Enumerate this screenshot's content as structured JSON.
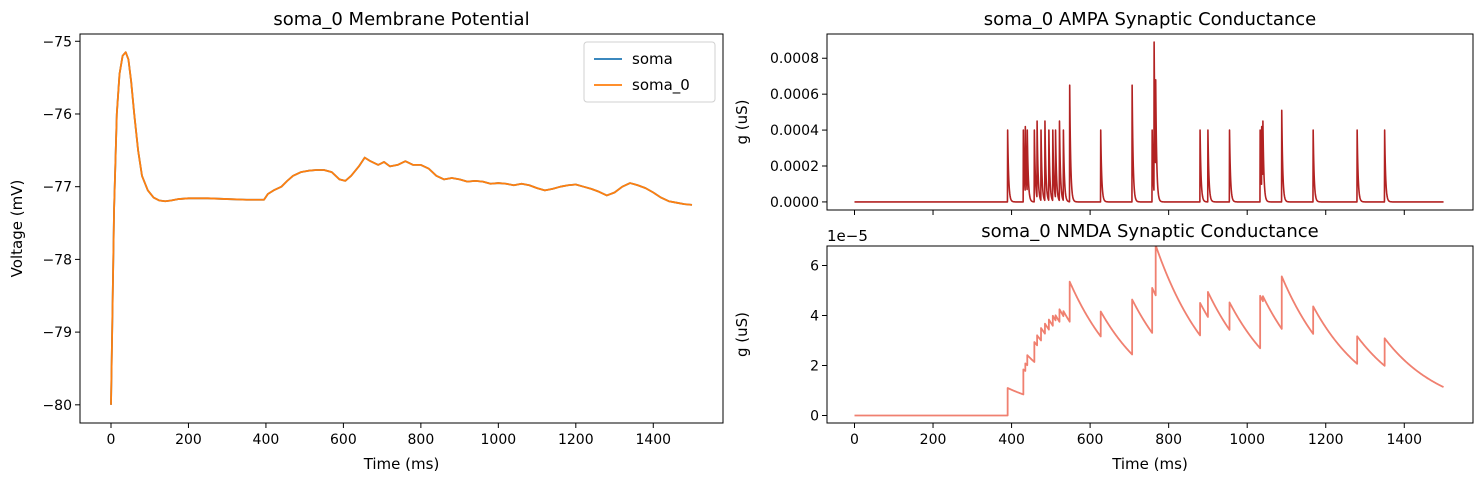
{
  "chart_data": [
    {
      "type": "line",
      "title": "soma_0 Membrane Potential",
      "xlabel": "Time (ms)",
      "ylabel": "Voltage (mV)",
      "xlim": [
        -80,
        1580
      ],
      "ylim": [
        -80.25,
        -74.9
      ],
      "xticks": [
        0,
        200,
        400,
        600,
        800,
        1000,
        1200,
        1400
      ],
      "xtick_labels": [
        "0",
        "200",
        "400",
        "600",
        "800",
        "1000",
        "1200",
        "1400"
      ],
      "yticks": [
        -80,
        -79,
        -78,
        -77,
        -76,
        -75
      ],
      "ytick_labels": [
        "−80",
        "−79",
        "−78",
        "−77",
        "−76",
        "−75"
      ],
      "grid": false,
      "legend_position": "top-right",
      "colors": {
        "soma": "#1f77b4",
        "soma_0": "#ff7f0e"
      },
      "series": [
        {
          "name": "soma",
          "x": [
            0,
            3,
            8,
            15,
            22,
            30,
            38,
            45,
            52,
            60,
            70,
            80,
            95,
            110,
            125,
            140,
            155,
            175,
            200,
            250,
            300,
            350,
            395,
            405,
            420,
            440,
            455,
            470,
            490,
            510,
            530,
            550,
            570,
            590,
            605,
            620,
            640,
            655,
            670,
            690,
            705,
            720,
            740,
            760,
            780,
            800,
            820,
            840,
            860,
            880,
            900,
            920,
            940,
            960,
            980,
            1000,
            1020,
            1040,
            1060,
            1080,
            1100,
            1120,
            1140,
            1160,
            1180,
            1200,
            1220,
            1240,
            1260,
            1280,
            1300,
            1320,
            1340,
            1360,
            1380,
            1400,
            1420,
            1440,
            1460,
            1480,
            1500
          ],
          "values": [
            -80.0,
            -79.0,
            -77.3,
            -76.0,
            -75.45,
            -75.2,
            -75.15,
            -75.25,
            -75.55,
            -76.0,
            -76.5,
            -76.85,
            -77.05,
            -77.15,
            -77.19,
            -77.2,
            -77.19,
            -77.17,
            -77.16,
            -77.16,
            -77.17,
            -77.18,
            -77.18,
            -77.1,
            -77.05,
            -77.0,
            -76.92,
            -76.85,
            -76.8,
            -76.78,
            -76.77,
            -76.77,
            -76.8,
            -76.9,
            -76.92,
            -76.85,
            -76.72,
            -76.6,
            -76.65,
            -76.7,
            -76.66,
            -76.72,
            -76.7,
            -76.65,
            -76.7,
            -76.7,
            -76.75,
            -76.85,
            -76.9,
            -76.88,
            -76.9,
            -76.93,
            -76.92,
            -76.93,
            -76.96,
            -76.95,
            -76.96,
            -76.98,
            -76.96,
            -76.98,
            -77.02,
            -77.05,
            -77.03,
            -77.0,
            -76.98,
            -76.97,
            -77.0,
            -77.03,
            -77.07,
            -77.12,
            -77.08,
            -77.0,
            -76.95,
            -76.98,
            -77.02,
            -77.08,
            -77.15,
            -77.2,
            -77.22,
            -77.24,
            -77.25
          ]
        },
        {
          "name": "soma_0",
          "x": [
            0,
            3,
            8,
            15,
            22,
            30,
            38,
            45,
            52,
            60,
            70,
            80,
            95,
            110,
            125,
            140,
            155,
            175,
            200,
            250,
            300,
            350,
            395,
            405,
            420,
            440,
            455,
            470,
            490,
            510,
            530,
            550,
            570,
            590,
            605,
            620,
            640,
            655,
            670,
            690,
            705,
            720,
            740,
            760,
            780,
            800,
            820,
            840,
            860,
            880,
            900,
            920,
            940,
            960,
            980,
            1000,
            1020,
            1040,
            1060,
            1080,
            1100,
            1120,
            1140,
            1160,
            1180,
            1200,
            1220,
            1240,
            1260,
            1280,
            1300,
            1320,
            1340,
            1360,
            1380,
            1400,
            1420,
            1440,
            1460,
            1480,
            1500
          ],
          "values": [
            -80.0,
            -79.0,
            -77.3,
            -76.0,
            -75.45,
            -75.2,
            -75.15,
            -75.25,
            -75.55,
            -76.0,
            -76.5,
            -76.85,
            -77.05,
            -77.15,
            -77.19,
            -77.2,
            -77.19,
            -77.17,
            -77.16,
            -77.16,
            -77.17,
            -77.18,
            -77.18,
            -77.1,
            -77.05,
            -77.0,
            -76.92,
            -76.85,
            -76.8,
            -76.78,
            -76.77,
            -76.77,
            -76.8,
            -76.9,
            -76.92,
            -76.85,
            -76.72,
            -76.6,
            -76.65,
            -76.7,
            -76.66,
            -76.72,
            -76.7,
            -76.65,
            -76.7,
            -76.7,
            -76.75,
            -76.85,
            -76.9,
            -76.88,
            -76.9,
            -76.93,
            -76.92,
            -76.93,
            -76.96,
            -76.95,
            -76.96,
            -76.98,
            -76.96,
            -76.98,
            -77.02,
            -77.05,
            -77.03,
            -77.0,
            -76.98,
            -76.97,
            -77.0,
            -77.03,
            -77.07,
            -77.12,
            -77.08,
            -77.0,
            -76.95,
            -76.98,
            -77.02,
            -77.08,
            -77.15,
            -77.2,
            -77.22,
            -77.24,
            -77.25
          ]
        }
      ]
    },
    {
      "type": "line",
      "title": "soma_0 AMPA Synaptic Conductance",
      "xlabel": "",
      "ylabel": "g (uS)",
      "xlim": [
        -70,
        1575
      ],
      "ylim": [
        -4.5e-05,
        0.000935
      ],
      "yticks": [
        0,
        0.0002,
        0.0004,
        0.0006,
        0.0008
      ],
      "ytick_labels": [
        "0.0000",
        "0.0002",
        "0.0004",
        "0.0006",
        "0.0008"
      ],
      "xtick_labels_visible": false,
      "grid": false,
      "colors": {
        "line": "#b22222"
      },
      "spikes": {
        "times": [
          390,
          430,
          435,
          440,
          458,
          465,
          475,
          485,
          495,
          505,
          512,
          522,
          532,
          548,
          627,
          707,
          758,
          763,
          767,
          880,
          900,
          955,
          1033,
          1037,
          1040,
          1088,
          1168,
          1280,
          1350
        ],
        "peaks": [
          0.0004,
          0.0004,
          0.00042,
          0.0004,
          0.0004,
          0.00045,
          0.0004,
          0.00045,
          0.0004,
          0.0004,
          0.0004,
          0.00045,
          0.0004,
          0.00065,
          0.0004,
          0.00065,
          0.0004,
          0.00089,
          0.00068,
          0.0004,
          0.0004,
          0.0004,
          0.0004,
          0.00042,
          0.00045,
          0.00051,
          0.0004,
          0.0004,
          0.0004
        ],
        "tau_ms": 2.5
      }
    },
    {
      "type": "line",
      "title": "soma_0 NMDA Synaptic Conductance",
      "xlabel": "Time (ms)",
      "ylabel": "g (uS)",
      "offset_text": "1e−5",
      "xlim": [
        -70,
        1575
      ],
      "ylim": [
        -3e-06,
        6.78e-05
      ],
      "xticks": [
        0,
        200,
        400,
        600,
        800,
        1000,
        1200,
        1400
      ],
      "xtick_labels": [
        "0",
        "200",
        "400",
        "600",
        "800",
        "1000",
        "1200",
        "1400"
      ],
      "yticks": [
        0,
        2e-05,
        4e-05,
        6e-05
      ],
      "ytick_labels": [
        "0",
        "2",
        "4",
        "6"
      ],
      "grid": false,
      "colors": {
        "line": "#f08070"
      },
      "events": {
        "times": [
          390,
          430,
          435,
          440,
          458,
          465,
          475,
          485,
          495,
          505,
          512,
          522,
          532,
          548,
          627,
          707,
          758,
          767,
          880,
          900,
          955,
          1033,
          1040,
          1088,
          1168,
          1280,
          1350
        ],
        "increments": [
          1.1e-05,
          1e-05,
          3e-06,
          4e-06,
          8e-06,
          4e-06,
          5e-06,
          4e-06,
          4e-06,
          4e-06,
          2e-06,
          5e-06,
          2e-06,
          1.6e-05,
          1e-05,
          2.2e-05,
          1.8e-05,
          2e-05,
          1.3e-05,
          1e-05,
          1.1e-05,
          2.1e-05,
          2e-06,
          2.1e-05,
          1.1e-05,
          1.1e-05,
          1.1e-05
        ],
        "tau_ms": 150
      }
    }
  ]
}
